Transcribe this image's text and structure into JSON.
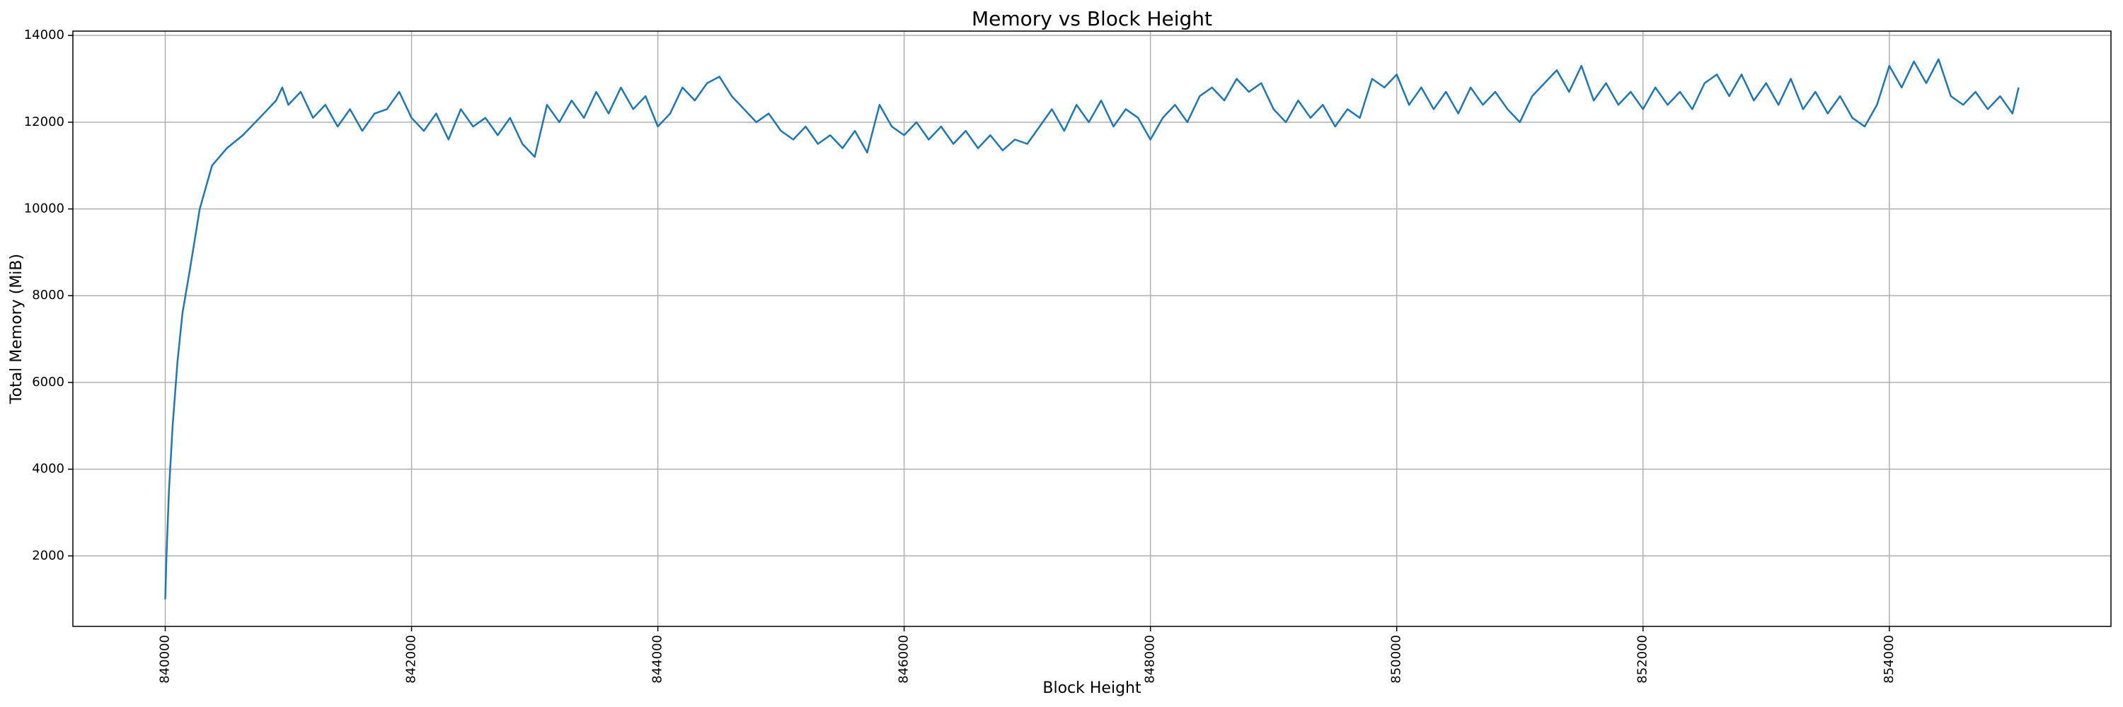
{
  "chart_data": {
    "type": "line",
    "title": "Memory vs Block Height",
    "x_label": "Block Height",
    "y_label": "Total Memory (MiB)",
    "x": [
      840000,
      840010,
      840030,
      840060,
      840100,
      840140,
      840200,
      840280,
      840380,
      840500,
      840630,
      840800,
      840900,
      840950,
      841000,
      841100,
      841200,
      841300,
      841400,
      841500,
      841600,
      841700,
      841800,
      841900,
      842000,
      842100,
      842200,
      842300,
      842400,
      842500,
      842600,
      842700,
      842800,
      842900,
      843000,
      843100,
      843200,
      843300,
      843400,
      843500,
      843600,
      843700,
      843800,
      843900,
      844000,
      844100,
      844200,
      844300,
      844400,
      844500,
      844600,
      844700,
      844800,
      844900,
      845000,
      845100,
      845200,
      845300,
      845400,
      845500,
      845600,
      845700,
      845800,
      845900,
      846000,
      846100,
      846200,
      846300,
      846400,
      846500,
      846600,
      846700,
      846800,
      846900,
      847000,
      847100,
      847200,
      847300,
      847400,
      847500,
      847600,
      847700,
      847800,
      847900,
      848000,
      848100,
      848200,
      848300,
      848400,
      848500,
      848600,
      848700,
      848800,
      848900,
      849000,
      849100,
      849200,
      849300,
      849400,
      849500,
      849600,
      849700,
      849800,
      849900,
      850000,
      850100,
      850200,
      850300,
      850400,
      850500,
      850600,
      850700,
      850800,
      850900,
      851000,
      851100,
      851200,
      851300,
      851400,
      851500,
      851600,
      851700,
      851800,
      851900,
      852000,
      852100,
      852200,
      852300,
      852400,
      852500,
      852600,
      852700,
      852800,
      852900,
      853000,
      853100,
      853200,
      853300,
      853400,
      853500,
      853600,
      853700,
      853800,
      853900,
      854000,
      854100,
      854200,
      854300,
      854400,
      854500,
      854600,
      854700,
      854800,
      854900,
      855000,
      855050
    ],
    "series": [
      {
        "name": "Total Memory",
        "color": "#1f77b4",
        "values": [
          1000,
          2000,
          3500,
          5000,
          6500,
          7600,
          8600,
          10000,
          11000,
          11400,
          11700,
          12200,
          12500,
          12800,
          12400,
          12700,
          12100,
          12400,
          11900,
          12300,
          11800,
          12200,
          12300,
          12700,
          12100,
          11800,
          12200,
          11600,
          12300,
          11900,
          12100,
          11700,
          12100,
          11500,
          11200,
          12400,
          12000,
          12500,
          12100,
          12700,
          12200,
          12800,
          12300,
          12600,
          11900,
          12200,
          12800,
          12500,
          12900,
          13050,
          12600,
          12300,
          12000,
          12200,
          11800,
          11600,
          11900,
          11500,
          11700,
          11400,
          11800,
          11300,
          12400,
          11900,
          11700,
          12000,
          11600,
          11900,
          11500,
          11800,
          11400,
          11700,
          11350,
          11600,
          11500,
          11900,
          12300,
          11800,
          12400,
          12000,
          12500,
          11900,
          12300,
          12100,
          11600,
          12100,
          12400,
          12000,
          12600,
          12800,
          12500,
          13000,
          12700,
          12900,
          12300,
          12000,
          12500,
          12100,
          12400,
          11900,
          12300,
          12100,
          13000,
          12800,
          13100,
          12400,
          12800,
          12300,
          12700,
          12200,
          12800,
          12400,
          12700,
          12300,
          12000,
          12600,
          12900,
          13200,
          12700,
          13300,
          12500,
          12900,
          12400,
          12700,
          12300,
          12800,
          12400,
          12700,
          12300,
          12900,
          13100,
          12600,
          13100,
          12500,
          12900,
          12400,
          13000,
          12300,
          12700,
          12200,
          12600,
          12100,
          11900,
          12400,
          13300,
          12800,
          13400,
          12900,
          13450,
          12600,
          12400,
          12700,
          12300,
          12600,
          12200,
          12800
        ]
      }
    ],
    "xlim": [
      839250,
      855800
    ],
    "ylim": [
      375,
      14100
    ],
    "xticks": [
      840000,
      842000,
      844000,
      846000,
      848000,
      850000,
      852000,
      854000
    ],
    "yticks": [
      2000,
      4000,
      6000,
      8000,
      10000,
      12000,
      14000
    ],
    "grid": true
  }
}
